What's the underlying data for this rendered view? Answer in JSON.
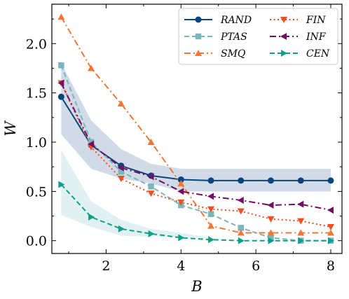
{
  "chart_data": {
    "type": "line",
    "xlabel": "B",
    "ylabel": "W",
    "xlim": [
      0.55,
      8.3
    ],
    "ylim": [
      -0.13,
      2.4
    ],
    "xticks": [
      2,
      4,
      6,
      8
    ],
    "yticks": [
      0.0,
      0.5,
      1.0,
      1.5,
      2.0
    ],
    "legend_position": "top-right",
    "grid": false,
    "x": [
      0.8,
      1.6,
      2.4,
      3.2,
      4.0,
      4.8,
      5.6,
      6.4,
      7.2,
      8.0
    ],
    "bands": [
      {
        "series": "RAND",
        "color": "#a9bdd4",
        "lower": [
          1.08,
          0.73,
          0.63,
          0.58,
          0.5,
          0.5,
          0.5,
          0.5,
          0.5,
          0.5
        ],
        "upper": [
          1.8,
          1.22,
          0.93,
          0.78,
          0.73,
          0.73,
          0.73,
          0.73,
          0.73,
          0.73
        ]
      },
      {
        "series": "CEN",
        "color": "#c8e4e8",
        "lower": [
          0.26,
          0.14,
          0.05,
          0.04,
          0.04,
          0.02,
          0.0,
          0.0,
          0.0,
          0.0
        ],
        "upper": [
          0.92,
          0.4,
          0.21,
          0.12,
          0.08,
          0.03,
          0.0,
          0.0,
          0.0,
          0.0
        ]
      }
    ],
    "series": [
      {
        "name": "RAND",
        "color": "#08457e",
        "marker": "circle",
        "linestyle": "solid",
        "values": [
          1.46,
          0.97,
          0.76,
          0.66,
          0.62,
          0.61,
          0.61,
          0.61,
          0.61,
          0.61
        ]
      },
      {
        "name": "PTAS",
        "color": "#79b6bd",
        "marker": "square",
        "linestyle": "dashed",
        "values": [
          1.78,
          1.0,
          0.7,
          0.55,
          0.36,
          0.27,
          0.13,
          0.03,
          0.0,
          0.0
        ]
      },
      {
        "name": "SMQ",
        "color": "#f07836",
        "marker": "triangle-up",
        "linestyle": "dashdot",
        "values": [
          2.27,
          1.75,
          1.39,
          1.0,
          0.58,
          0.15,
          0.08,
          0.08,
          0.08,
          0.08
        ]
      },
      {
        "name": "FIN",
        "color": "#f04e23",
        "marker": "triangle-down",
        "linestyle": "dotted",
        "values": [
          1.6,
          0.95,
          0.63,
          0.48,
          0.39,
          0.32,
          0.3,
          0.22,
          0.2,
          0.14
        ]
      },
      {
        "name": "INF",
        "color": "#730f62",
        "marker": "triangle-left",
        "linestyle": "dashdot",
        "values": [
          1.6,
          0.98,
          0.74,
          0.65,
          0.5,
          0.45,
          0.41,
          0.36,
          0.37,
          0.31
        ]
      },
      {
        "name": "CEN",
        "color": "#10a08a",
        "marker": "triangle-right",
        "linestyle": "dashed",
        "values": [
          0.57,
          0.24,
          0.12,
          0.07,
          0.03,
          0.01,
          0.0,
          0.0,
          0.0,
          0.0
        ]
      }
    ]
  }
}
